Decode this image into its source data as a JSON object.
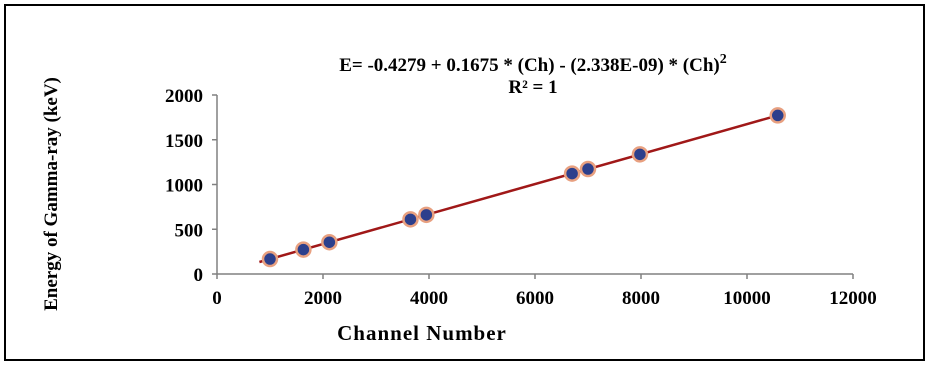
{
  "chart_data": {
    "type": "scatter",
    "title": "",
    "xlabel": "Channel Number",
    "ylabel": "Energy of Gamma-ray  (keV)",
    "xlim": [
      0,
      12000
    ],
    "ylim": [
      0,
      2000
    ],
    "x_ticks": [
      0,
      2000,
      4000,
      6000,
      8000,
      10000,
      12000
    ],
    "y_ticks": [
      0,
      500,
      1000,
      1500,
      2000
    ],
    "x_tick_labels": [
      "0",
      "2000",
      "4000",
      "6000",
      "8000",
      "10000",
      "12000"
    ],
    "y_tick_labels": [
      "0",
      "500",
      "1000",
      "1500",
      "2000"
    ],
    "grid": false,
    "legend": "none",
    "annotation": {
      "equation_main": "E= -0.4279 + 0.1675 * (Ch) - (2.338E-09) * (Ch)",
      "equation_sup": "2",
      "r_squared": "R² = 1"
    },
    "series": [
      {
        "x": [
          1000,
          1630,
          2120,
          3650,
          3950,
          6700,
          7000,
          7980,
          10580
        ],
        "y": [
          167,
          273,
          355,
          611,
          661,
          1122,
          1173,
          1337,
          1772
        ]
      }
    ],
    "fit": {
      "x": [
        800,
        10600
      ],
      "y": [
        134,
        1775
      ]
    },
    "colors": {
      "marker_fill": "#2c3f8c",
      "marker_edge": "#e8a080",
      "fit_line": "#a01818",
      "axis": "#808080"
    }
  }
}
